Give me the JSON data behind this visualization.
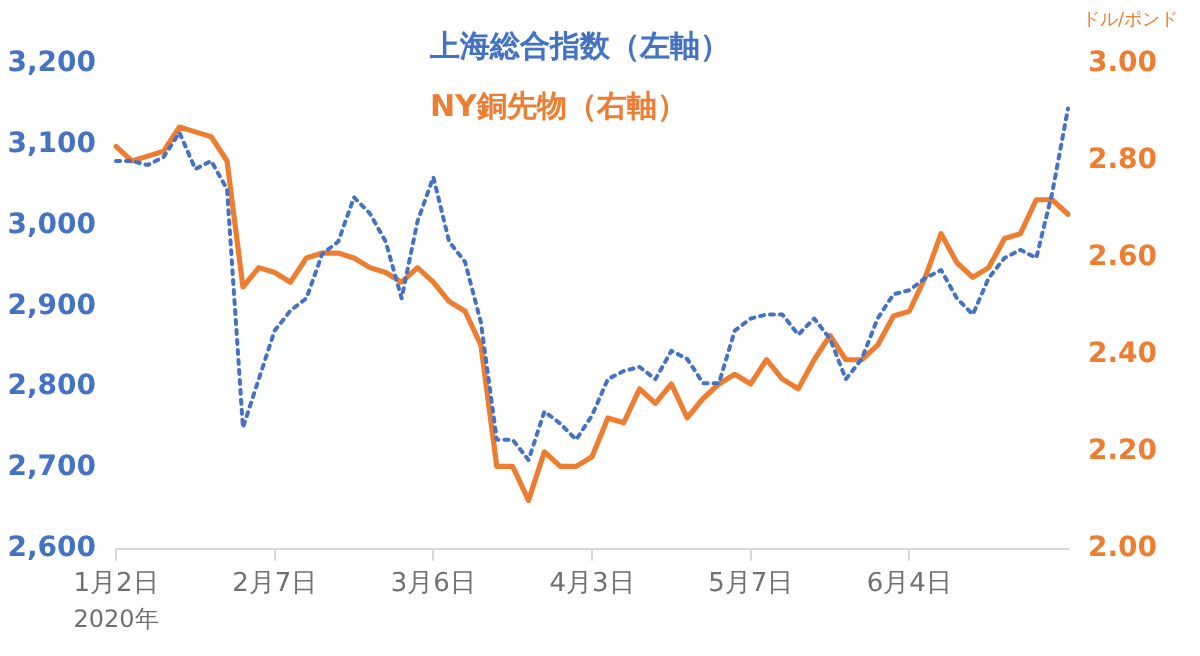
{
  "chart_data": {
    "type": "line",
    "categories": [
      "1月2日",
      null,
      null,
      null,
      null,
      null,
      null,
      null,
      null,
      null,
      "2月7日",
      null,
      null,
      null,
      null,
      null,
      null,
      null,
      null,
      null,
      "3月6日",
      null,
      null,
      null,
      null,
      null,
      null,
      null,
      null,
      null,
      "4月3日",
      null,
      null,
      null,
      null,
      null,
      null,
      null,
      null,
      null,
      "5月7日",
      null,
      null,
      null,
      null,
      null,
      null,
      null,
      null,
      null,
      "6月4日",
      null,
      null,
      null,
      null,
      null,
      null,
      null,
      null,
      null,
      null
    ],
    "series": [
      {
        "name": "上海総合指数（左軸）",
        "color": "#4472c4",
        "line_style": "dotted",
        "axis": "y",
        "values": [
          3080,
          3080,
          3075,
          3085,
          3115,
          3070,
          3080,
          3045,
          2750,
          2810,
          2870,
          2895,
          2910,
          2965,
          2980,
          3035,
          3015,
          2980,
          2910,
          3005,
          3060,
          2980,
          2955,
          2880,
          2735,
          2735,
          2710,
          2770,
          2755,
          2735,
          2765,
          2810,
          2820,
          2825,
          2810,
          2845,
          2835,
          2805,
          2805,
          2870,
          2885,
          2890,
          2890,
          2865,
          2885,
          2860,
          2810,
          2835,
          2885,
          2915,
          2920,
          2935,
          2945,
          2910,
          2890,
          2935,
          2960,
          2970,
          2960,
          3040,
          3145
        ]
      },
      {
        "name": "NY銅先物（右軸）",
        "color": "#ed7d31",
        "line_style": "solid",
        "axis": "y2",
        "values": [
          2.83,
          2.8,
          2.81,
          2.82,
          2.87,
          2.86,
          2.85,
          2.8,
          2.54,
          2.58,
          2.57,
          2.55,
          2.6,
          2.61,
          2.61,
          2.6,
          2.58,
          2.57,
          2.55,
          2.58,
          2.55,
          2.51,
          2.49,
          2.42,
          2.17,
          2.17,
          2.1,
          2.2,
          2.17,
          2.17,
          2.19,
          2.27,
          2.26,
          2.33,
          2.3,
          2.34,
          2.27,
          2.31,
          2.34,
          2.36,
          2.34,
          2.39,
          2.35,
          2.33,
          2.39,
          2.44,
          2.39,
          2.39,
          2.42,
          2.48,
          2.49,
          2.56,
          2.65,
          2.59,
          2.56,
          2.58,
          2.64,
          2.65,
          2.72,
          2.72,
          2.69
        ]
      }
    ],
    "ylim": [
      2600,
      3200
    ],
    "yticks": [
      {
        "value": 2600,
        "label": "2,600"
      },
      {
        "value": 2700,
        "label": "2,700"
      },
      {
        "value": 2800,
        "label": "2,800"
      },
      {
        "value": 2900,
        "label": "2,900"
      },
      {
        "value": 3000,
        "label": "3,000"
      },
      {
        "value": 3100,
        "label": "3,100"
      },
      {
        "value": 3200,
        "label": "3,200"
      }
    ],
    "y2lim": [
      2,
      3
    ],
    "y2ticks": [
      {
        "value": 2,
        "label": "2.00"
      },
      {
        "value": 2.2,
        "label": "2.20"
      },
      {
        "value": 2.4,
        "label": "2.40"
      },
      {
        "value": 2.6,
        "label": "2.60"
      },
      {
        "value": 2.8,
        "label": "2.80"
      },
      {
        "value": 3,
        "label": "3.00"
      }
    ],
    "y2label": "ドル/ポンド",
    "annotations": [
      "2020年"
    ],
    "legend": "top",
    "grid": false
  }
}
